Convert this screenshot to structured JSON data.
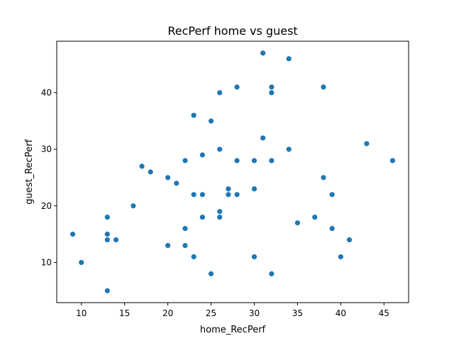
{
  "chart_data": {
    "type": "scatter",
    "title": "RecPerf home vs guest",
    "xlabel": "home_RecPerf",
    "ylabel": "guest_RecPerf",
    "xlim": [
      7.15,
      47.85
    ],
    "ylim": [
      2.9,
      49.1
    ],
    "xticks": [
      10,
      15,
      20,
      25,
      30,
      35,
      40,
      45
    ],
    "yticks": [
      10,
      20,
      30,
      40
    ],
    "marker_color": "#1f77b4",
    "grid": false,
    "series": [
      {
        "points": [
          [
            9,
            15
          ],
          [
            10,
            10
          ],
          [
            13,
            18
          ],
          [
            13,
            15
          ],
          [
            13,
            14
          ],
          [
            13,
            5
          ],
          [
            14,
            14
          ],
          [
            16,
            20
          ],
          [
            17,
            27
          ],
          [
            18,
            26
          ],
          [
            20,
            25
          ],
          [
            20,
            13
          ],
          [
            21,
            24
          ],
          [
            22,
            28
          ],
          [
            22,
            16
          ],
          [
            22,
            13
          ],
          [
            23,
            36
          ],
          [
            23,
            22
          ],
          [
            23,
            11
          ],
          [
            24,
            29
          ],
          [
            24,
            22
          ],
          [
            24,
            18
          ],
          [
            25,
            35
          ],
          [
            25,
            8
          ],
          [
            26,
            40
          ],
          [
            26,
            30
          ],
          [
            26,
            19
          ],
          [
            26,
            18
          ],
          [
            27,
            23
          ],
          [
            27,
            22
          ],
          [
            28,
            41
          ],
          [
            28,
            28
          ],
          [
            28,
            22
          ],
          [
            30,
            28
          ],
          [
            30,
            23
          ],
          [
            30,
            11
          ],
          [
            31,
            47
          ],
          [
            31,
            32
          ],
          [
            32,
            41
          ],
          [
            32,
            40
          ],
          [
            32,
            28
          ],
          [
            32,
            8
          ],
          [
            34,
            46
          ],
          [
            34,
            30
          ],
          [
            35,
            17
          ],
          [
            37,
            18
          ],
          [
            38,
            41
          ],
          [
            38,
            25
          ],
          [
            39,
            22
          ],
          [
            39,
            16
          ],
          [
            40,
            11
          ],
          [
            41,
            14
          ],
          [
            43,
            31
          ],
          [
            46,
            28
          ]
        ]
      }
    ]
  }
}
